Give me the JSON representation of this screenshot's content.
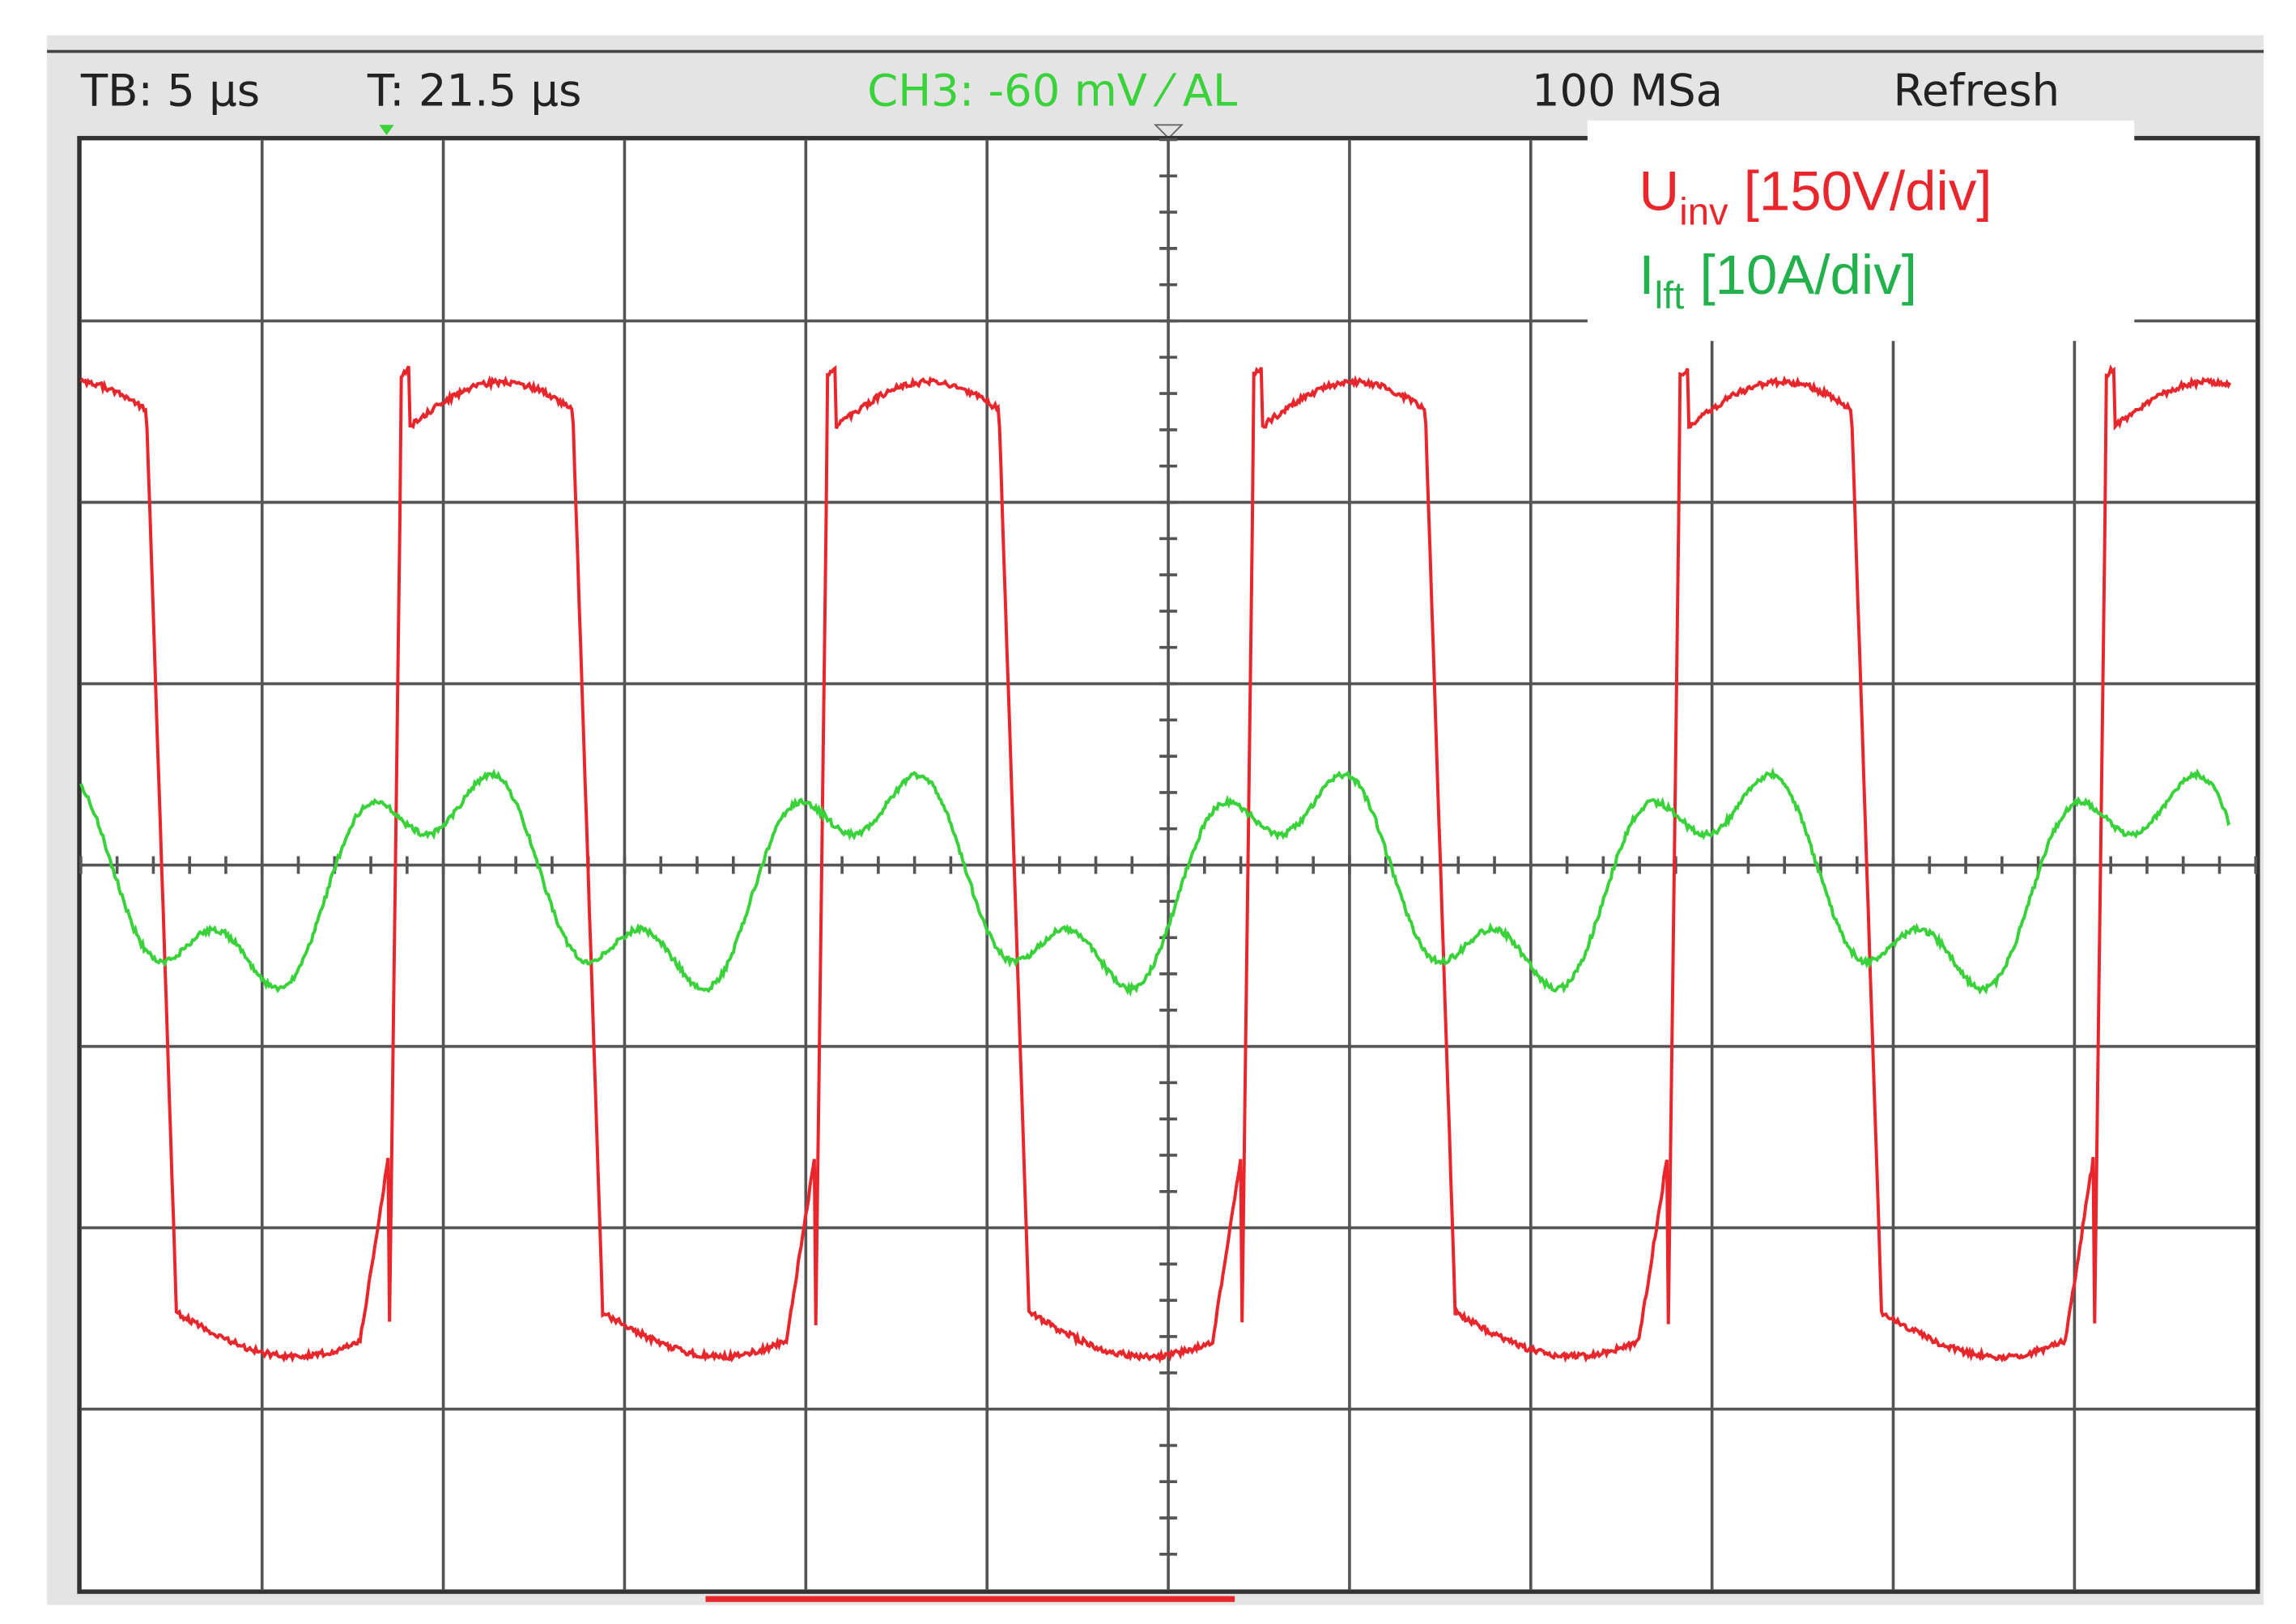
{
  "header": {
    "timebase": "TB: 5 µs",
    "trigger_time": "T: 21.5 µs",
    "channel": "CH3: -60 mV ⁄ AL",
    "sample_rate": "100 MSa",
    "mode": "Refresh"
  },
  "legend": [
    {
      "symbol": "U",
      "subscript": "inv",
      "scale": " [150V/div]"
    },
    {
      "symbol": "I",
      "subscript": "lft",
      "scale": " [10A/div]"
    }
  ]
}
